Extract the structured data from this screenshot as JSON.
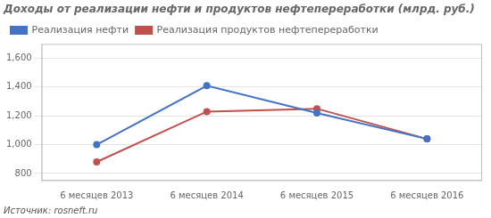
{
  "chart_data": {
    "type": "line",
    "title": "Доходы от реализации нефти и продуктов нефтепереработки (млрд. руб.)",
    "annotations": [
      "Источник: rosneft.ru"
    ],
    "categories": [
      "6 месяцев 2013",
      "6 месяцев 2014",
      "6 месяцев 2015",
      "6 месяцев 2016"
    ],
    "series": [
      {
        "name": "Реализация нефти",
        "color": "#4472C4",
        "marker": "circle",
        "values": [
          1000,
          1410,
          1220,
          1040
        ]
      },
      {
        "name": "Реализация продуктов нефтепереработки",
        "color": "#C0504D",
        "marker": "circle",
        "values": [
          880,
          1230,
          1250,
          1040
        ]
      }
    ],
    "ylim": [
      750,
      1700
    ],
    "yticks": [
      800,
      {
        "value": 1000,
        "label": "1,000"
      },
      {
        "value": 1200,
        "label": "1,200"
      },
      {
        "value": 1400,
        "label": "1,400"
      },
      {
        "value": 1600,
        "label": "1,600"
      }
    ],
    "grid": true,
    "legend": "upper left"
  }
}
